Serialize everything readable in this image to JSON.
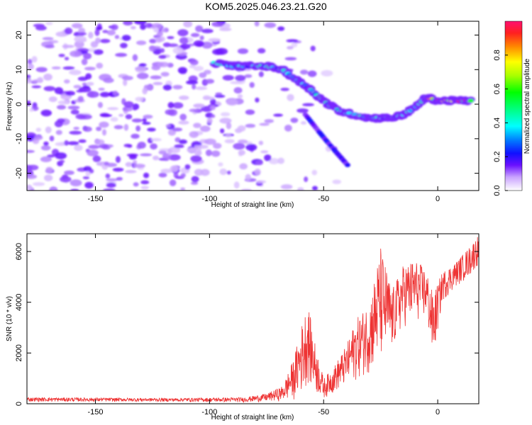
{
  "title": "KOM5.2025.046.23.21.G20",
  "chart_data": [
    {
      "type": "heatmap",
      "xlabel": "Height of straight line (km)",
      "ylabel": "Frequency (Hz)",
      "xlim": [
        -180,
        18
      ],
      "ylim": [
        -25,
        24
      ],
      "xticks": [
        -150,
        -100,
        -50,
        0
      ],
      "yticks": [
        -20,
        -10,
        0,
        10,
        20
      ],
      "colorbar": {
        "label": "Normalized spectral amplitude",
        "range": [
          0.0,
          1.0
        ],
        "ticks": [
          0.0,
          0.2,
          0.4,
          0.6,
          0.8
        ],
        "colormap": "rainbow"
      },
      "ridge": [
        {
          "x": -98,
          "y": 12
        },
        {
          "x": -90,
          "y": 11
        },
        {
          "x": -83,
          "y": 11
        },
        {
          "x": -75,
          "y": 11
        },
        {
          "x": -68,
          "y": 10
        },
        {
          "x": -62,
          "y": 7
        },
        {
          "x": -57,
          "y": 5
        },
        {
          "x": -52,
          "y": 2
        },
        {
          "x": -48,
          "y": 0
        },
        {
          "x": -43,
          "y": -2
        },
        {
          "x": -37,
          "y": -3
        },
        {
          "x": -30,
          "y": -4
        },
        {
          "x": -25,
          "y": -4
        },
        {
          "x": -20,
          "y": -4
        },
        {
          "x": -15,
          "y": -3
        },
        {
          "x": -10,
          "y": -1
        },
        {
          "x": -5,
          "y": 2
        },
        {
          "x": 0,
          "y": 1
        },
        {
          "x": 5,
          "y": 1
        },
        {
          "x": 10,
          "y": 1
        },
        {
          "x": 15,
          "y": 1
        }
      ],
      "secondary_branch": [
        {
          "x": -58,
          "y": -3
        },
        {
          "x": -52,
          "y": -8
        },
        {
          "x": -47,
          "y": -12
        },
        {
          "x": -43,
          "y": -15
        },
        {
          "x": -39,
          "y": -18
        }
      ]
    },
    {
      "type": "line",
      "xlabel": "Height of straight line (km)",
      "ylabel": "SNR (10 * v/v)",
      "xlim": [
        -180,
        18
      ],
      "ylim": [
        0,
        6700
      ],
      "xticks": [
        -150,
        -100,
        -50,
        0
      ],
      "yticks": [
        0,
        2000,
        4000,
        6000
      ],
      "color": "#ee3333",
      "envelope": [
        {
          "x": -180,
          "hi": 250,
          "lo": 80
        },
        {
          "x": -120,
          "hi": 220,
          "lo": 80
        },
        {
          "x": -85,
          "hi": 250,
          "lo": 60
        },
        {
          "x": -75,
          "hi": 400,
          "lo": 80
        },
        {
          "x": -68,
          "hi": 700,
          "lo": 100
        },
        {
          "x": -63,
          "hi": 1800,
          "lo": 150
        },
        {
          "x": -60,
          "hi": 3000,
          "lo": 300
        },
        {
          "x": -57,
          "hi": 4000,
          "lo": 800
        },
        {
          "x": -54,
          "hi": 2500,
          "lo": 400
        },
        {
          "x": -50,
          "hi": 1000,
          "lo": 200
        },
        {
          "x": -46,
          "hi": 1400,
          "lo": 400
        },
        {
          "x": -40,
          "hi": 2300,
          "lo": 700
        },
        {
          "x": -36,
          "hi": 3300,
          "lo": 900
        },
        {
          "x": -30,
          "hi": 4000,
          "lo": 1200
        },
        {
          "x": -25,
          "hi": 6200,
          "lo": 1500
        },
        {
          "x": -20,
          "hi": 4500,
          "lo": 2000
        },
        {
          "x": -15,
          "hi": 5500,
          "lo": 3000
        },
        {
          "x": -10,
          "hi": 5700,
          "lo": 3200
        },
        {
          "x": -5,
          "hi": 5300,
          "lo": 3300
        },
        {
          "x": -2,
          "hi": 4300,
          "lo": 1600
        },
        {
          "x": 2,
          "hi": 5200,
          "lo": 4000
        },
        {
          "x": 8,
          "hi": 5600,
          "lo": 4600
        },
        {
          "x": 14,
          "hi": 6200,
          "lo": 5000
        },
        {
          "x": 18,
          "hi": 6700,
          "lo": 5500
        }
      ]
    }
  ]
}
